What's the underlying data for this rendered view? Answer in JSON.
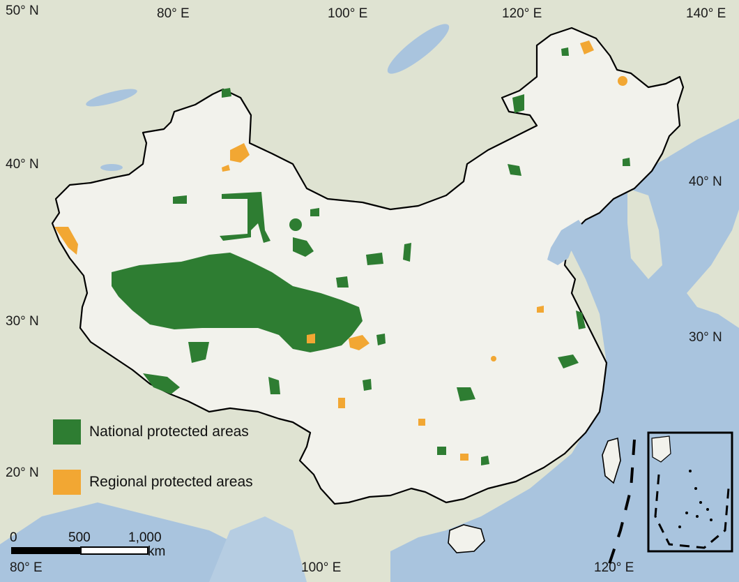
{
  "grid_labels": {
    "top": [
      "50° N",
      "80° E",
      "100° E",
      "120° E",
      "140° E"
    ],
    "left": [
      "40° N",
      "30° N",
      "20° N"
    ],
    "right": [
      "40° N",
      "30° N"
    ],
    "bottom": [
      "80° E",
      "100° E",
      "120° E"
    ]
  },
  "legend": {
    "national": {
      "label": "National protected areas",
      "color": "#2e7d32"
    },
    "regional": {
      "label": "Regional protected areas",
      "color": "#f2a733"
    }
  },
  "scale_bar": {
    "labels": [
      "0",
      "500",
      "1,000"
    ],
    "units": "km"
  },
  "colors": {
    "ocean": "#a9c4de",
    "land_outside": "#dfe3d2",
    "china_land": "#f2f2ec",
    "border": "#000000"
  }
}
